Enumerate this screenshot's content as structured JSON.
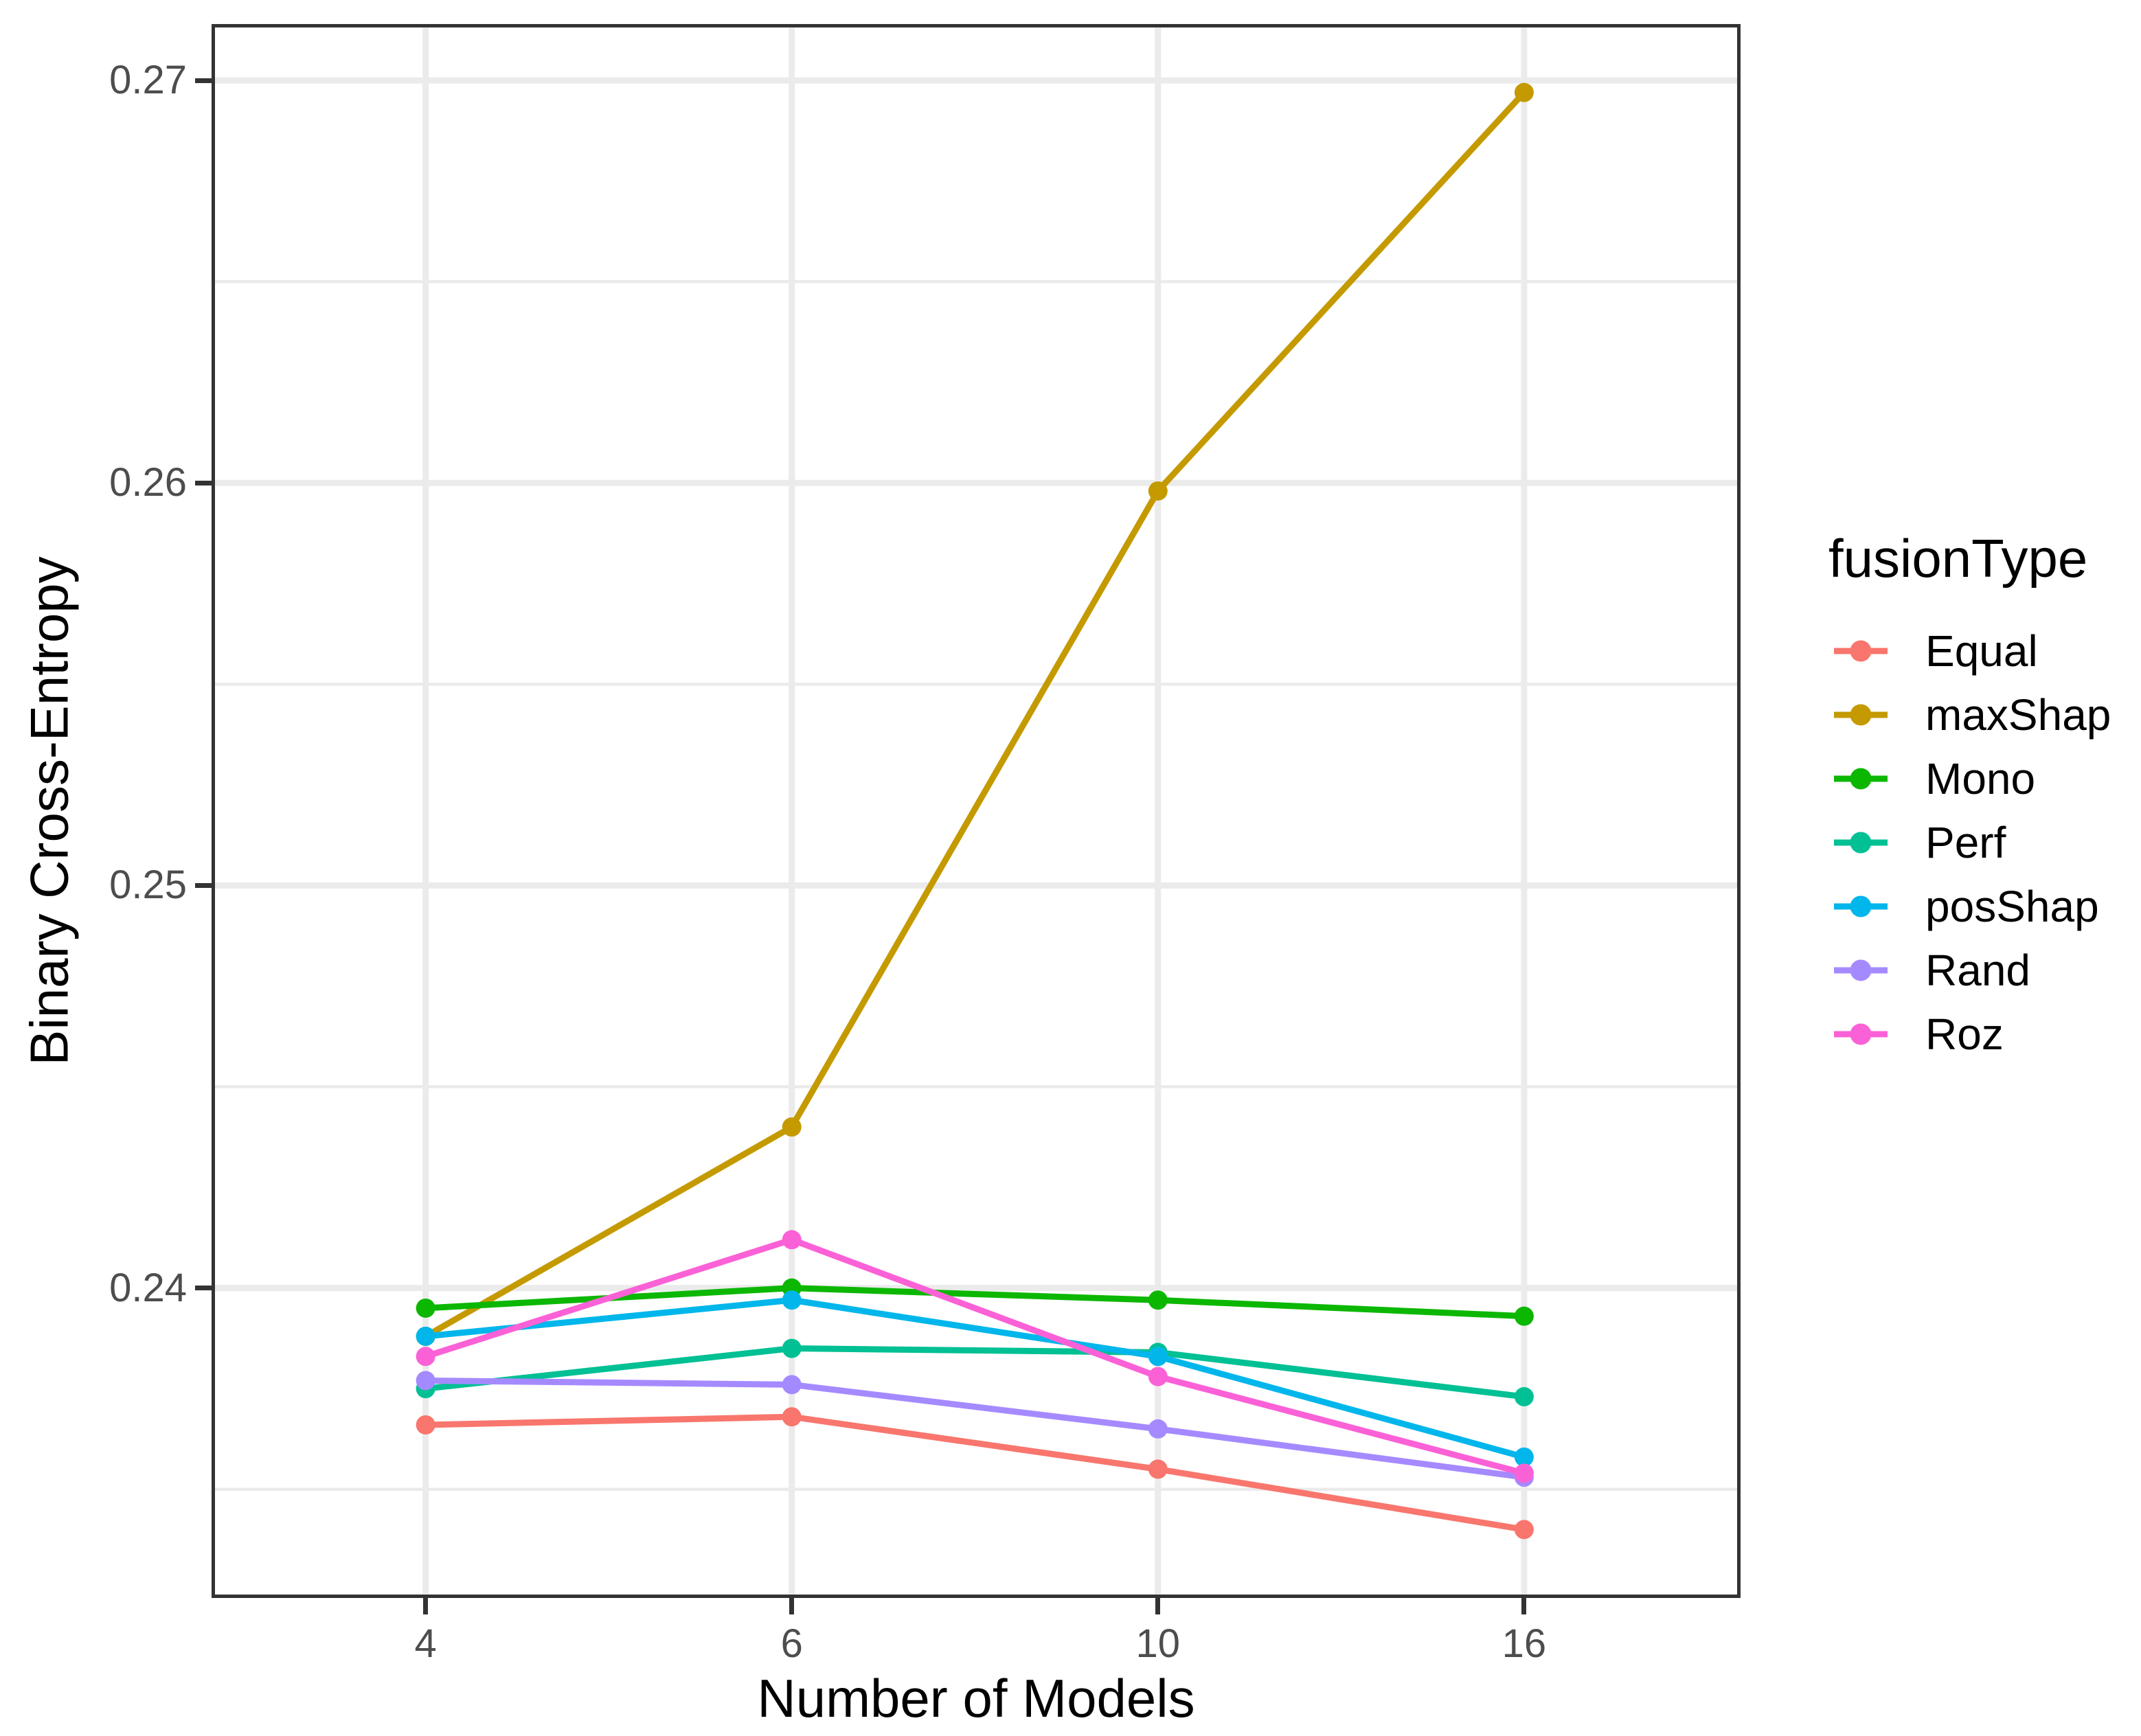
{
  "figure": {
    "background": "#FFFFFF",
    "panel_border_color": "#333333",
    "gridline_color": "#EBEBEB",
    "tick_color": "#333333",
    "tick_label_color": "#4D4D4D",
    "axis_title_color": "#000000"
  },
  "chart_data": {
    "type": "line",
    "title": "",
    "xlabel": "Number of Models",
    "ylabel": "Binary Cross-Entropy",
    "legend_title": "fusionType",
    "legend_position": "right",
    "grid": true,
    "x_categories": [
      "4",
      "6",
      "10",
      "16"
    ],
    "y_tick_labels": [
      "0.27",
      "0.26",
      "0.25",
      "0.24"
    ],
    "y_major_ticks": [
      0.27,
      0.26,
      0.25,
      0.24
    ],
    "y_minor_gridlines": [
      0.265,
      0.255,
      0.245,
      0.235
    ],
    "ylim": [
      0.2323,
      0.2714
    ],
    "series": [
      {
        "name": "Equal",
        "color": "#F8766D",
        "values": [
          0.2366,
          0.2368,
          0.2355,
          0.234
        ]
      },
      {
        "name": "maxShap",
        "color": "#C49A00",
        "values": [
          0.2388,
          0.244,
          0.2598,
          0.2697
        ]
      },
      {
        "name": "Mono",
        "color": "#0CB702",
        "values": [
          0.2395,
          0.24,
          0.2397,
          0.2393
        ]
      },
      {
        "name": "Perf",
        "color": "#00C094",
        "values": [
          0.2375,
          0.2385,
          0.2384,
          0.2373
        ]
      },
      {
        "name": "posShap",
        "color": "#00B6EB",
        "values": [
          0.2388,
          0.2397,
          0.2383,
          0.2358
        ]
      },
      {
        "name": "Rand",
        "color": "#A58AFF",
        "values": [
          0.2377,
          0.2376,
          0.2365,
          0.2353
        ]
      },
      {
        "name": "Roz",
        "color": "#FB61D7",
        "values": [
          0.2383,
          0.2412,
          0.2378,
          0.2354
        ]
      }
    ]
  }
}
